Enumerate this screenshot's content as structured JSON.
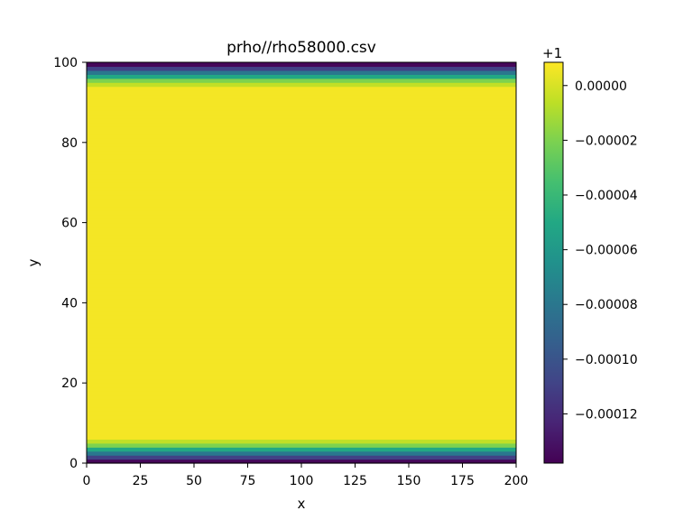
{
  "chart_data": {
    "type": "heatmap",
    "title": "prho//rho58000.csv",
    "xlabel": "x",
    "ylabel": "y",
    "xlim": [
      0,
      200
    ],
    "ylim": [
      0,
      100
    ],
    "x_ticks": [
      "0",
      "25",
      "50",
      "75",
      "100",
      "125",
      "150",
      "175",
      "200"
    ],
    "y_ticks": [
      "0",
      "20",
      "40",
      "60",
      "80",
      "100"
    ],
    "grid": false,
    "colormap": "viridis",
    "colorbar": {
      "offset_label": "+1",
      "range": [
        -0.000138,
        8.5e-06
      ],
      "ticks": [
        "0.00000",
        "−0.00002",
        "−0.00004",
        "−0.00006",
        "−0.00008",
        "−0.00010",
        "−0.00012"
      ],
      "tick_values": [
        0,
        -2e-05,
        -4e-05,
        -6e-05,
        -8e-05,
        -0.0001,
        -0.00012
      ]
    },
    "rows": {
      "y_start": 0,
      "y_step": 1,
      "values_edge": [
        -0.000136,
        -0.00011,
        -8e-05,
        -5e-05,
        -2e-05,
        -5e-06
      ],
      "values_interior": 6.5e-06
    }
  }
}
